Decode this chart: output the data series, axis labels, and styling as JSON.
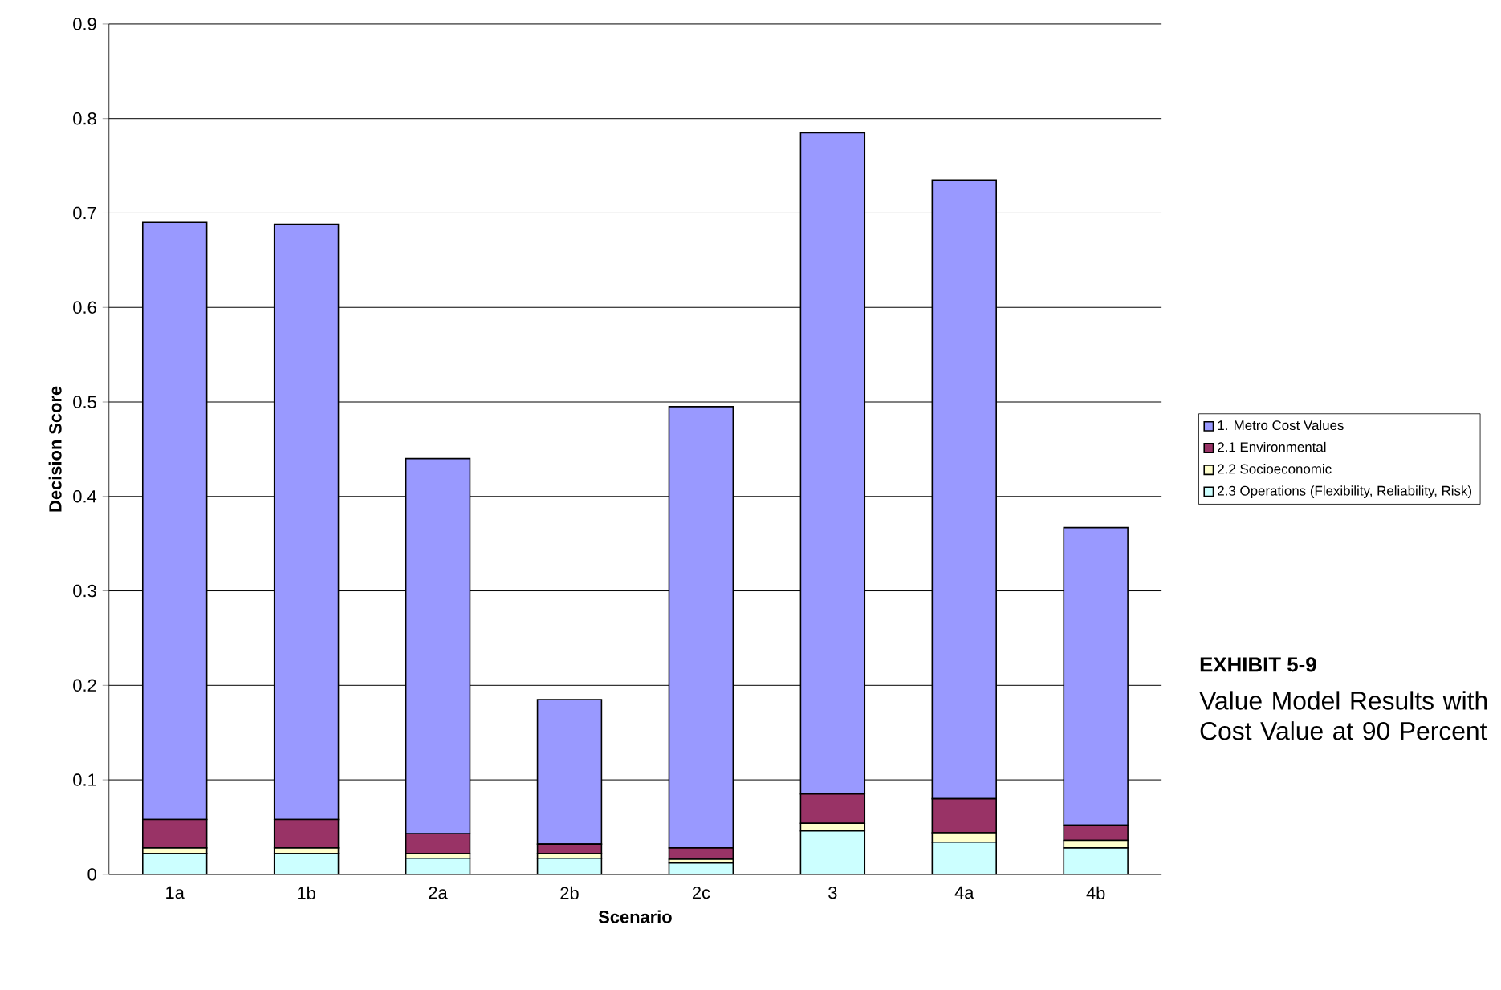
{
  "chart_data": {
    "type": "bar",
    "stacked": true,
    "xlabel": "Scenario",
    "ylabel": "Decision Score",
    "categories": [
      "1a",
      "1b",
      "2a",
      "2b",
      "2c",
      "3",
      "4a",
      "4b"
    ],
    "series": [
      {
        "name": "2.3 Operations (Flexibility, Reliability, Risk)",
        "color": "#ccffff",
        "values": [
          0.022,
          0.022,
          0.017,
          0.017,
          0.012,
          0.046,
          0.034,
          0.028
        ]
      },
      {
        "name": "2.2 Socioeconomic",
        "color": "#ffffcc",
        "values": [
          0.006,
          0.006,
          0.005,
          0.005,
          0.004,
          0.008,
          0.01,
          0.008
        ]
      },
      {
        "name": "2.1 Environmental",
        "color": "#993366",
        "values": [
          0.03,
          0.03,
          0.021,
          0.01,
          0.012,
          0.031,
          0.036,
          0.016
        ]
      },
      {
        "name": "1. Metro Cost Values",
        "color": "#9999ff",
        "values": [
          0.632,
          0.63,
          0.397,
          0.153,
          0.467,
          0.7,
          0.655,
          0.315
        ]
      }
    ],
    "ylim": [
      0,
      0.9
    ],
    "yticks": [
      0,
      0.1,
      0.2,
      0.3,
      0.4,
      0.5,
      0.6,
      0.7,
      0.8,
      0.9
    ],
    "grid": "y",
    "legend": "right",
    "annotations": [
      "**EXHIBIT 5-9**",
      "Value Model Results with Cost Value at 90 Percent"
    ]
  }
}
